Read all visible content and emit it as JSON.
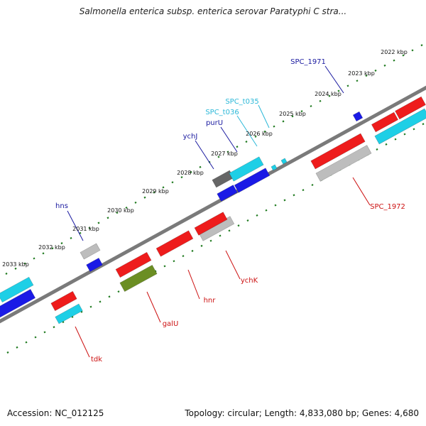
{
  "title": "Salmonella enterica subsp. enterica serovar Paratyphi C stra...",
  "footer": {
    "accession": "Accession: NC_012125",
    "summary": "Topology: circular; Length: 4,833,080 bp; Genes: 4,680"
  },
  "colors": {
    "ring": "#7a7a7a",
    "ticks": "#1f7a1f",
    "red": "#ee1c1c",
    "blue": "#1a1ae6",
    "cyan": "#1ecfe6",
    "gray": "#bdbdbd",
    "olive": "#6b8e23",
    "darkgray": "#666666",
    "label_blue": "#1a1aa0",
    "label_cyan": "#2bb8d8",
    "label_red": "#cc1111"
  },
  "kbp_labels": [
    "2022 kbp",
    "2023 kbp",
    "2024 kbp",
    "2025 kbp",
    "2026 kbp",
    "2027 kbp",
    "2028 kbp",
    "2029 kbp",
    "2030 kbp",
    "2031 kbp",
    "2032 kbp",
    "2033 kbp"
  ],
  "genes": [
    {
      "name": "SPC_1971",
      "color": "label_blue"
    },
    {
      "name": "SPC_t035",
      "color": "label_cyan"
    },
    {
      "name": "SPC_t036",
      "color": "label_cyan"
    },
    {
      "name": "purU",
      "color": "label_blue"
    },
    {
      "name": "ychJ",
      "color": "label_blue"
    },
    {
      "name": "hns",
      "color": "label_blue"
    },
    {
      "name": "SPC_1972",
      "color": "label_red"
    },
    {
      "name": "ychK",
      "color": "label_red"
    },
    {
      "name": "hnr",
      "color": "label_red"
    },
    {
      "name": "galU",
      "color": "label_red"
    },
    {
      "name": "tdk",
      "color": "label_red"
    }
  ]
}
